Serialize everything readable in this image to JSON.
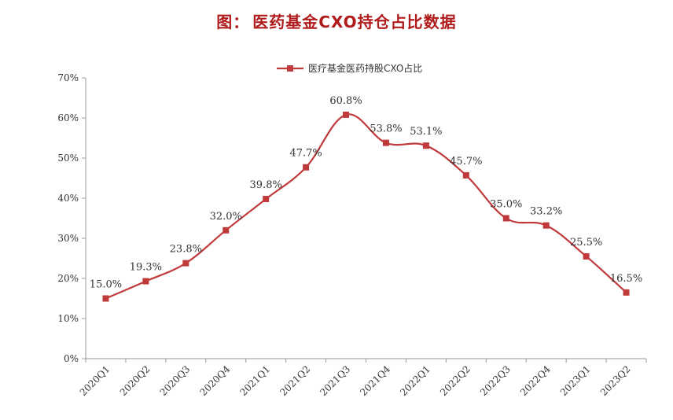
{
  "figure": {
    "title_lead": "图：",
    "title_text": "医药基金CXO持仓占比数据"
  },
  "colors": {
    "series": "#c0393b",
    "title": "#b01c1c",
    "axis": "#999999"
  },
  "chart_data": {
    "type": "line",
    "title": "医药基金CXO持仓占比数据",
    "categories": [
      "2020Q1",
      "2020Q2",
      "2020Q3",
      "2020Q4",
      "2021Q1",
      "2021Q2",
      "2021Q3",
      "2021Q4",
      "2022Q1",
      "2022Q2",
      "2022Q3",
      "2022Q4",
      "2023Q1",
      "2023Q2"
    ],
    "series": [
      {
        "name": "医疗基金医药持股CXO占比",
        "values": [
          15.0,
          19.3,
          23.8,
          32.0,
          39.8,
          47.7,
          60.8,
          53.8,
          53.1,
          45.7,
          35.0,
          33.2,
          25.5,
          16.5
        ],
        "labels": [
          "15.0%",
          "19.3%",
          "23.8%",
          "32.0%",
          "39.8%",
          "47.7%",
          "60.8%",
          "53.8%",
          "53.1%",
          "45.7%",
          "35.0%",
          "33.2%",
          "25.5%",
          "16.5%"
        ]
      }
    ],
    "yticks": [
      "0%",
      "10%",
      "20%",
      "30%",
      "40%",
      "50%",
      "60%",
      "70%"
    ],
    "ylim": [
      0,
      70
    ],
    "xlabel": "",
    "ylabel": "",
    "legend_position": "top-center",
    "grid": false,
    "marker": "square"
  }
}
